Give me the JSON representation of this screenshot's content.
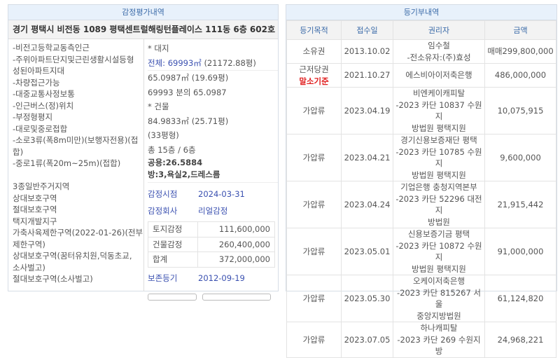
{
  "appraisal": {
    "title": "감정평가내역",
    "address": "경기 평택시 비전동 1089 평택센트럴해링턴플레이스 111동 6층 602호",
    "notes": [
      "-비전고등학교동측인근",
      "-주위아파트단지및근린생활시설등형",
      "성된아파트지대",
      "-차량접근가능",
      "-대중교통사정보통",
      "-인근버스(정)위치",
      "-부정형평지",
      "-대로및중로접합",
      "-소로3류(폭8m미만)(보행자전용)(접",
      "합)",
      "-중로1류(폭20m~25m)(접합)",
      "",
      "3종일반주거지역",
      "상대보호구역",
      "절대보호구역",
      "택지개발지구",
      "가축사육제한구역(2022-01-26)(전부",
      "제한구역)",
      "상대보호구역(꿈터유치원,덕동초교,",
      "소사벌고)",
      "절대보호구역(소사벌고)"
    ],
    "land_heading": "* 대지",
    "land_total": "전체: 69993㎡",
    "land_total_pyeong": "(21172.88평)",
    "land_area": "65.0987㎡ (19.69평)",
    "land_share": "69993 분의 65.0987",
    "building_heading": "* 건물",
    "building_area": "84.9833㎡ (25.71평)",
    "building_type": "(33평형)",
    "floors": "총 15층 / 6층",
    "common": "공용:26.5884",
    "rooms": "방:3,욕실2,드레스름",
    "date_label": "감정시점",
    "date": "2024-03-31",
    "company_label": "감정회사",
    "company": "리얼감정",
    "values": [
      {
        "label": "토지감정",
        "value": "111,600,000"
      },
      {
        "label": "건물감정",
        "value": "260,400,000"
      },
      {
        "label": "합계",
        "value": "372,000,000"
      }
    ],
    "preserve_label": "보존등기",
    "preserve_date": "2012-09-19"
  },
  "registry": {
    "title": "등기부내역",
    "headers": [
      "등기목적",
      "접수일",
      "권리자",
      "금액"
    ],
    "rows": [
      {
        "type": "소유권",
        "date": "2013.10.02",
        "holder": [
          "임수철",
          "-전소유자:(주)효성"
        ],
        "amount": "매매299,800,000"
      },
      {
        "type": "근저당권",
        "flag": "말소기준",
        "date": "2021.10.27",
        "holder": [
          "에스비아이저축은행"
        ],
        "amount": "486,000,000"
      },
      {
        "type": "가압류",
        "date": "2023.04.19",
        "holder": [
          "비엔케이캐피탈",
          "-2023 카단 10837 수원지",
          "방법원 평택지원"
        ],
        "amount": "10,075,915"
      },
      {
        "type": "가압류",
        "date": "2023.04.21",
        "holder": [
          "경기신용보증재단 평택",
          "-2023 카단 10785 수원지",
          "방법원 평택지원"
        ],
        "amount": "9,600,000"
      },
      {
        "type": "가압류",
        "date": "2023.04.24",
        "holder": [
          "기업은행 충청지역본부",
          "-2023 카단 52296 대전지",
          "방법원"
        ],
        "amount": "21,915,442"
      },
      {
        "type": "가압류",
        "date": "2023.05.01",
        "holder": [
          "신용보증기금 평택",
          "-2023 카단 10872 수원지",
          "방법원 평택지원"
        ],
        "amount": "91,000,000"
      },
      {
        "type": "가압류",
        "date": "2023.05.30",
        "holder": [
          "오케이저축은행",
          "-2023 카단 815267 서울",
          "중앙지방법원"
        ],
        "amount": "61,124,820"
      },
      {
        "type": "가압류",
        "date": "2023.07.05",
        "holder": [
          "하나캐피탈",
          "-2023 카단 269 수원지방"
        ],
        "amount": "24,968,221"
      }
    ]
  }
}
